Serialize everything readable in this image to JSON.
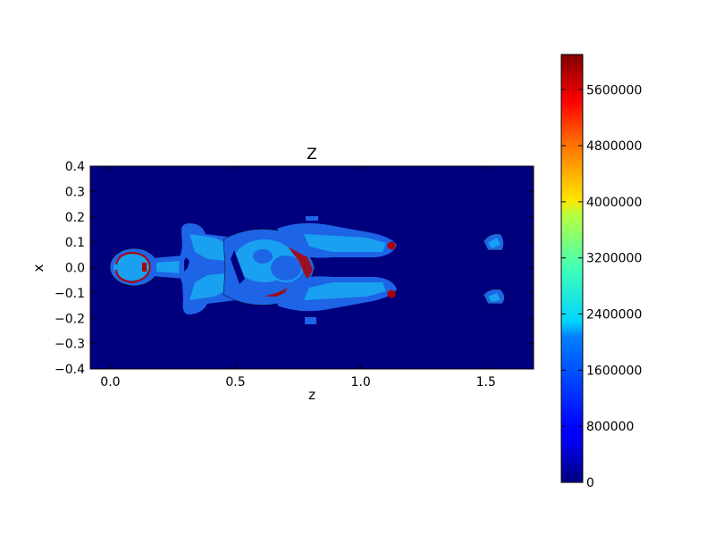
{
  "chart_data": {
    "type": "heatmap",
    "title": "Z",
    "xlabel": "z",
    "ylabel": "x",
    "xlim": [
      -0.08,
      1.69
    ],
    "ylim": [
      -0.4,
      0.4
    ],
    "xticks": [
      0.0,
      0.5,
      1.0,
      1.5
    ],
    "xtick_labels": [
      "0.0",
      "0.5",
      "1.0",
      "1.5"
    ],
    "yticks": [
      0.4,
      0.3,
      0.2,
      0.1,
      0.0,
      -0.1,
      -0.2,
      -0.3,
      -0.4
    ],
    "ytick_labels": [
      "0.4",
      "0.3",
      "0.2",
      "0.1",
      "0.0",
      "−0.1",
      "−0.2",
      "−0.3",
      "−0.4"
    ],
    "colormap": "jet",
    "colorbar": {
      "min": 0,
      "max": 6100000,
      "ticks": [
        0,
        800000,
        1600000,
        2400000,
        3200000,
        4000000,
        4800000,
        5600000
      ],
      "tick_labels": [
        "0",
        "800000",
        "1600000",
        "2400000",
        "3200000",
        "4000000",
        "4800000",
        "5600000"
      ]
    },
    "grid": false,
    "colors": {
      "background": "#00007f",
      "body_outer": "#1e64e6",
      "body_inner": "#19a0f0",
      "hot_spot": "#b00000"
    }
  }
}
